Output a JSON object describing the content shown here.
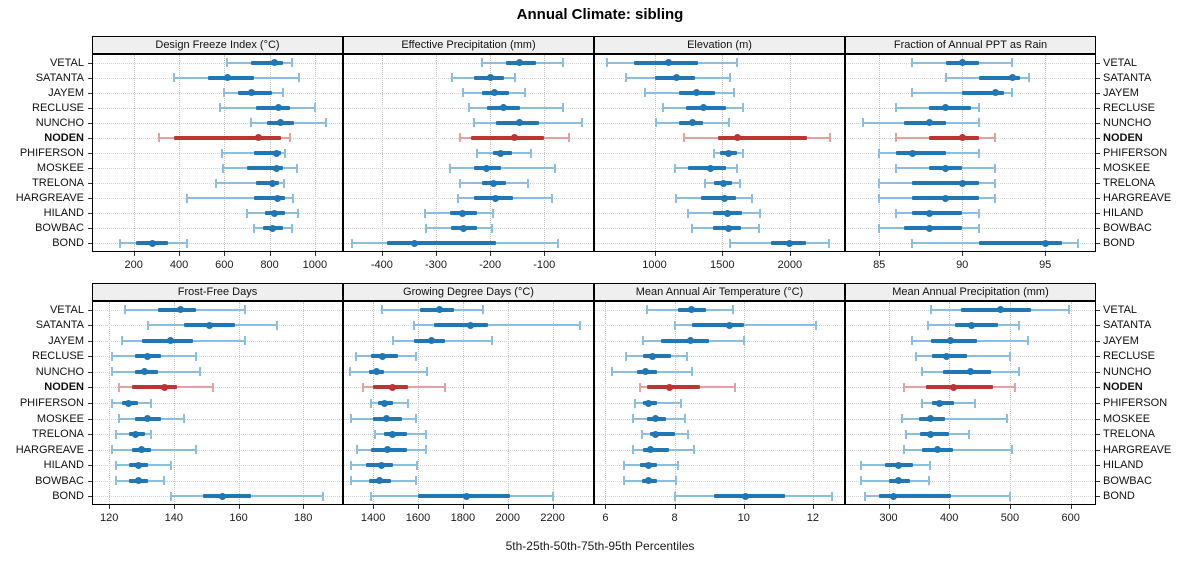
{
  "title": "Annual Climate: sibling",
  "caption": "5th-25th-50th-75th-95th Percentiles",
  "sites": [
    "VETAL",
    "SATANTA",
    "JAYEM",
    "RECLUSE",
    "NUNCHO",
    "NODEN",
    "PHIFERSON",
    "MOSKEE",
    "TRELONA",
    "HARGREAVE",
    "HILAND",
    "BOWBAC",
    "BOND"
  ],
  "highlight_site": "NODEN",
  "percentiles": [
    "5th",
    "25th",
    "50th",
    "75th",
    "95th"
  ],
  "colors": {
    "series": "#2077b4",
    "series_light": "#8cbfdf",
    "highlight": "#bf3333",
    "highlight_light": "#e4a1a1",
    "strip_bg": "#efefef",
    "panel_border": "#000000",
    "grid": "#c6c6c6"
  },
  "chart_data": [
    {
      "type": "errorbar",
      "title": "Design Freeze Index (°C)",
      "xlim": [
        20,
        1120
      ],
      "xticks": [
        200,
        400,
        600,
        800,
        1000
      ],
      "values": [
        [
          610,
          720,
          820,
          860,
          900
        ],
        [
          380,
          530,
          615,
          730,
          930
        ],
        [
          600,
          660,
          720,
          810,
          860
        ],
        [
          580,
          740,
          840,
          890,
          1000
        ],
        [
          720,
          790,
          850,
          910,
          1050
        ],
        [
          310,
          380,
          750,
          850,
          890
        ],
        [
          590,
          730,
          830,
          850,
          870
        ],
        [
          595,
          700,
          830,
          860,
          920
        ],
        [
          565,
          740,
          815,
          840,
          865
        ],
        [
          435,
          730,
          835,
          870,
          905
        ],
        [
          700,
          780,
          820,
          870,
          925
        ],
        [
          730,
          770,
          815,
          860,
          900
        ],
        [
          140,
          210,
          285,
          350,
          435
        ]
      ]
    },
    {
      "type": "errorbar",
      "title": "Effective Precipitation (mm)",
      "xlim": [
        -470,
        -10
      ],
      "xticks": [
        -400,
        -300,
        -200,
        -100
      ],
      "values": [
        [
          -215,
          -170,
          -145,
          -115,
          -65
        ],
        [
          -270,
          -230,
          -200,
          -175,
          -155
        ],
        [
          -250,
          -215,
          -192,
          -165,
          -135
        ],
        [
          -240,
          -205,
          -175,
          -145,
          -65
        ],
        [
          -230,
          -190,
          -145,
          -110,
          -30
        ],
        [
          -255,
          -235,
          -155,
          -100,
          -55
        ],
        [
          -225,
          -195,
          -180,
          -160,
          -125
        ],
        [
          -275,
          -230,
          -207,
          -180,
          -80
        ],
        [
          -255,
          -215,
          -193,
          -170,
          -130
        ],
        [
          -260,
          -230,
          -190,
          -158,
          -85
        ],
        [
          -320,
          -275,
          -252,
          -225,
          -195
        ],
        [
          -318,
          -272,
          -250,
          -225,
          -197
        ],
        [
          -455,
          -390,
          -340,
          -190,
          -75
        ]
      ]
    },
    {
      "type": "errorbar",
      "title": "Elevation (m)",
      "xlim": [
        560,
        2400
      ],
      "xticks": [
        1000,
        1500,
        2000
      ],
      "values": [
        [
          650,
          850,
          1100,
          1320,
          1610
        ],
        [
          790,
          1000,
          1160,
          1300,
          1560
        ],
        [
          930,
          1180,
          1310,
          1450,
          1590
        ],
        [
          1060,
          1230,
          1360,
          1530,
          1650
        ],
        [
          1010,
          1180,
          1280,
          1360,
          1550
        ],
        [
          1215,
          1470,
          1610,
          2130,
          2300
        ],
        [
          1440,
          1480,
          1545,
          1610,
          1650
        ],
        [
          1150,
          1250,
          1415,
          1530,
          1610
        ],
        [
          1370,
          1440,
          1510,
          1570,
          1630
        ],
        [
          1160,
          1340,
          1515,
          1600,
          1720
        ],
        [
          1250,
          1430,
          1540,
          1650,
          1780
        ],
        [
          1280,
          1430,
          1545,
          1640,
          1770
        ],
        [
          1560,
          1860,
          1995,
          2120,
          2290
        ]
      ]
    },
    {
      "type": "errorbar",
      "title": "Fraction of Annual PPT as Rain",
      "xlim": [
        83,
        98
      ],
      "xticks": [
        85,
        90,
        95
      ],
      "values": [
        [
          87,
          89,
          90,
          91,
          93
        ],
        [
          89,
          91,
          93,
          93.5,
          94
        ],
        [
          87,
          90,
          92,
          92.5,
          93
        ],
        [
          86,
          88,
          89,
          90.5,
          91
        ],
        [
          84,
          86.5,
          88,
          89,
          91
        ],
        [
          86,
          88,
          90,
          91,
          92
        ],
        [
          85,
          86,
          87,
          89,
          91
        ],
        [
          86,
          88,
          89,
          90,
          92
        ],
        [
          85,
          87,
          90,
          91,
          92
        ],
        [
          85,
          87,
          89,
          91,
          92
        ],
        [
          86,
          87,
          88,
          90,
          91
        ],
        [
          85,
          86.5,
          88,
          90,
          91
        ],
        [
          87,
          91,
          95,
          96,
          97
        ]
      ]
    },
    {
      "type": "errorbar",
      "title": "Frost-Free Days",
      "xlim": [
        115,
        192
      ],
      "xticks": [
        120,
        140,
        160,
        180
      ],
      "values": [
        [
          125,
          135,
          142,
          147,
          162
        ],
        [
          132,
          143,
          151,
          159,
          172
        ],
        [
          124,
          130,
          139,
          146,
          162
        ],
        [
          121,
          128,
          132,
          136,
          147
        ],
        [
          121,
          128,
          131,
          135,
          148
        ],
        [
          123,
          127,
          137,
          141,
          152
        ],
        [
          121,
          124,
          126,
          129,
          133
        ],
        [
          123,
          128,
          132,
          136,
          143
        ],
        [
          122,
          126,
          128,
          131,
          133
        ],
        [
          121,
          127,
          130,
          133,
          147
        ],
        [
          122,
          126,
          129,
          132,
          139
        ],
        [
          122,
          126,
          129,
          132,
          137
        ],
        [
          139,
          149,
          155,
          164,
          186
        ]
      ]
    },
    {
      "type": "errorbar",
      "title": "Growing Degree Days (°C)",
      "xlim": [
        1270,
        2380
      ],
      "xticks": [
        1400,
        1600,
        1800,
        2000,
        2200
      ],
      "values": [
        [
          1440,
          1610,
          1695,
          1760,
          1890
        ],
        [
          1580,
          1670,
          1835,
          1910,
          2320
        ],
        [
          1490,
          1580,
          1660,
          1720,
          1930
        ],
        [
          1325,
          1390,
          1440,
          1510,
          1590
        ],
        [
          1295,
          1380,
          1415,
          1450,
          1640
        ],
        [
          1355,
          1400,
          1485,
          1555,
          1720
        ],
        [
          1390,
          1420,
          1450,
          1490,
          1555
        ],
        [
          1300,
          1400,
          1460,
          1530,
          1590
        ],
        [
          1410,
          1450,
          1485,
          1550,
          1635
        ],
        [
          1330,
          1390,
          1465,
          1550,
          1635
        ],
        [
          1300,
          1370,
          1435,
          1490,
          1595
        ],
        [
          1300,
          1380,
          1430,
          1480,
          1590
        ],
        [
          1390,
          1600,
          1815,
          2010,
          2200
        ]
      ]
    },
    {
      "type": "errorbar",
      "title": "Mean Annual Air Temperature (°C)",
      "xlim": [
        5.7,
        12.9
      ],
      "xticks": [
        6,
        8,
        10,
        12
      ],
      "values": [
        [
          7.2,
          8.1,
          8.5,
          8.9,
          9.7
        ],
        [
          8.0,
          8.5,
          9.6,
          10.0,
          12.1
        ],
        [
          7.1,
          7.6,
          8.45,
          9.0,
          10.0
        ],
        [
          6.6,
          7.1,
          7.35,
          7.9,
          8.35
        ],
        [
          6.2,
          6.9,
          7.15,
          7.5,
          8.5
        ],
        [
          7.0,
          7.2,
          7.85,
          8.75,
          9.75
        ],
        [
          6.85,
          7.1,
          7.25,
          7.5,
          8.2
        ],
        [
          6.8,
          7.2,
          7.45,
          7.75,
          8.3
        ],
        [
          7.05,
          7.3,
          7.45,
          8.0,
          8.4
        ],
        [
          6.8,
          7.1,
          7.3,
          7.85,
          8.55
        ],
        [
          6.55,
          7.0,
          7.25,
          7.5,
          8.1
        ],
        [
          6.55,
          7.05,
          7.25,
          7.5,
          8.05
        ],
        [
          8.0,
          9.15,
          10.05,
          11.2,
          12.55
        ]
      ]
    },
    {
      "type": "errorbar",
      "title": "Mean Annual Precipitation (mm)",
      "xlim": [
        230,
        640
      ],
      "xticks": [
        300,
        400,
        500,
        600
      ],
      "values": [
        [
          370,
          420,
          485,
          535,
          598
        ],
        [
          365,
          410,
          437,
          480,
          515
        ],
        [
          338,
          370,
          402,
          445,
          530
        ],
        [
          345,
          372,
          395,
          430,
          500
        ],
        [
          355,
          390,
          435,
          468,
          515
        ],
        [
          325,
          362,
          407,
          472,
          508
        ],
        [
          355,
          372,
          384,
          408,
          443
        ],
        [
          322,
          350,
          369,
          393,
          495
        ],
        [
          328,
          352,
          369,
          400,
          433
        ],
        [
          325,
          355,
          381,
          407,
          503
        ],
        [
          255,
          295,
          316,
          340,
          368
        ],
        [
          255,
          300,
          317,
          335,
          367
        ],
        [
          262,
          285,
          308,
          403,
          500
        ]
      ]
    }
  ]
}
